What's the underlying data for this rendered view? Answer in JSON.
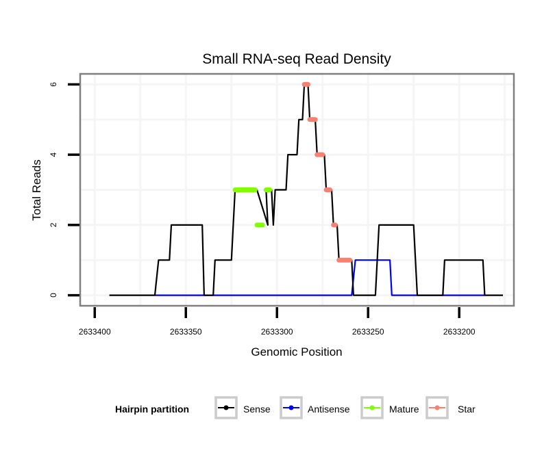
{
  "chart_data": {
    "type": "line",
    "title": "Small RNA-seq Read Density",
    "xlabel": "Genomic Position",
    "ylabel": "Total Reads",
    "x_reversed": true,
    "xlim": [
      2633408,
      2633170
    ],
    "ylim": [
      -0.3,
      6.3
    ],
    "x_ticks": [
      2633400,
      2633350,
      2633300,
      2633250,
      2633200
    ],
    "x_tick_labels": [
      "2633400",
      "2633350",
      "2633300",
      "2633250",
      "2633200"
    ],
    "y_ticks": [
      0,
      2,
      4,
      6
    ],
    "y_tick_labels": [
      "0",
      "2",
      "4",
      "6"
    ],
    "x_minor_grid": [
      2633375,
      2633325,
      2633275,
      2633225,
      2633175
    ],
    "y_minor_grid": [
      1,
      3,
      5
    ],
    "grid": true,
    "legend": {
      "title": "Hairpin partition",
      "placement": "bottom",
      "entries": [
        {
          "label": "Sense",
          "color": "#000000"
        },
        {
          "label": "Antisense",
          "color": "#0000ff"
        },
        {
          "label": "Mature",
          "color": "#7fff00"
        },
        {
          "label": "Star",
          "color": "#fa8072"
        }
      ]
    },
    "series": [
      {
        "name": "Sense",
        "color": "#000000",
        "x": [
          2633392,
          2633367,
          2633365,
          2633359,
          2633358,
          2633341,
          2633340,
          2633335,
          2633334,
          2633325,
          2633324,
          2633323,
          2633311,
          2633305,
          2633306,
          2633303,
          2633302,
          2633301,
          2633295,
          2633294,
          2633289,
          2633288,
          2633286,
          2633285,
          2633283,
          2633282,
          2633279,
          2633278,
          2633274,
          2633273,
          2633270,
          2633269,
          2633267,
          2633266,
          2633259,
          2633258,
          2633246,
          2633244,
          2633225,
          2633223,
          2633209,
          2633208,
          2633187,
          2633186,
          2633176
        ],
        "y": [
          0,
          0,
          1,
          1,
          2,
          2,
          0,
          0,
          1,
          1,
          2,
          3,
          3,
          2,
          3,
          3,
          2,
          3,
          3,
          4,
          4,
          5,
          5,
          6,
          6,
          5,
          5,
          4,
          4,
          3,
          3,
          2,
          2,
          1,
          1,
          0,
          0,
          2,
          2,
          0,
          0,
          1,
          1,
          0,
          0
        ]
      },
      {
        "name": "Antisense",
        "color": "#0000ff",
        "x": [
          2633367,
          2633259,
          2633257,
          2633238,
          2633237,
          2633186
        ],
        "y": [
          0,
          0,
          1,
          1,
          0,
          0
        ]
      }
    ],
    "highlight_segments": [
      {
        "name": "Mature",
        "color": "#7fff00",
        "segments": [
          {
            "x0": 2633323,
            "x1": 2633312,
            "y": 3
          },
          {
            "x0": 2633311,
            "x1": 2633308,
            "y": 2
          },
          {
            "x0": 2633306,
            "x1": 2633304,
            "y": 3
          }
        ]
      },
      {
        "name": "Star",
        "color": "#fa8072",
        "segments": [
          {
            "x0": 2633285,
            "x1": 2633283,
            "y": 6
          },
          {
            "x0": 2633282,
            "x1": 2633279,
            "y": 5
          },
          {
            "x0": 2633278,
            "x1": 2633275,
            "y": 4
          },
          {
            "x0": 2633273,
            "x1": 2633271,
            "y": 3
          },
          {
            "x0": 2633269,
            "x1": 2633268,
            "y": 2
          },
          {
            "x0": 2633266,
            "x1": 2633260,
            "y": 1
          }
        ]
      }
    ]
  }
}
